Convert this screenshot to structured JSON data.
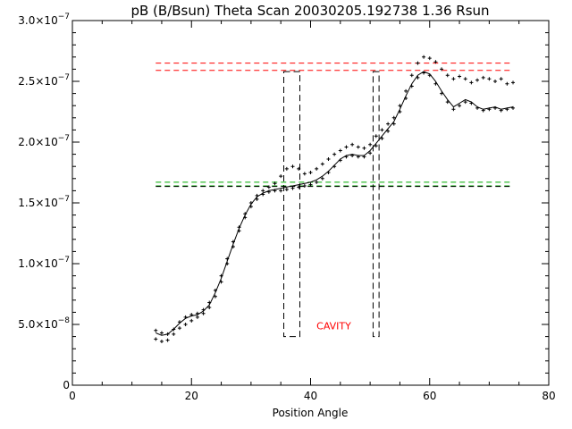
{
  "chart_data": {
    "type": "scatter",
    "title": "pB (B/Bsun) Theta Scan 20030205.192738 1.36 Rsun",
    "xlabel": "Position Angle",
    "ylabel": "",
    "xlim": [
      0,
      80
    ],
    "ylim": [
      0,
      3e-07
    ],
    "x_ticks": [
      0,
      20,
      40,
      60,
      80
    ],
    "x_tick_labels": [
      "0",
      "20",
      "40",
      "60",
      "80"
    ],
    "y_ticks": [
      0,
      5e-08,
      1e-07,
      1.5e-07,
      2e-07,
      2.5e-07,
      3e-07
    ],
    "y_tick_labels": [
      {
        "base": "0",
        "exp": ""
      },
      {
        "base": "5.0×10",
        "exp": "−8"
      },
      {
        "base": "1.0×10",
        "exp": "−7"
      },
      {
        "base": "1.5×10",
        "exp": "−7"
      },
      {
        "base": "2.0×10",
        "exp": "−7"
      },
      {
        "base": "2.5×10",
        "exp": "−7"
      },
      {
        "base": "3.0×10",
        "exp": "−7"
      }
    ],
    "annotation": {
      "text": "CAVITY",
      "x": 41,
      "y": 4.6e-08,
      "color": "#ff0000"
    },
    "series": [
      {
        "style": "plus",
        "color": "#000000",
        "x": [
          14,
          15,
          16,
          17,
          18,
          19,
          20,
          21,
          22,
          23,
          24,
          25,
          26,
          27,
          28,
          29,
          30,
          31,
          32,
          33,
          34,
          35,
          36,
          37,
          38,
          39,
          40,
          41,
          42,
          43,
          44,
          45,
          46,
          47,
          48,
          49,
          50,
          51,
          52,
          53,
          54,
          55,
          56,
          57,
          58,
          59,
          60,
          61,
          62,
          63,
          64,
          65,
          66,
          67,
          68,
          69,
          70,
          71,
          72,
          73,
          74
        ],
        "y": [
          4.5e-08,
          4.3e-08,
          4.2e-08,
          4.6e-08,
          5.2e-08,
          5.6e-08,
          5.8e-08,
          5.9e-08,
          6.2e-08,
          6.8e-08,
          7.8e-08,
          9e-08,
          1.04e-07,
          1.18e-07,
          1.3e-07,
          1.41e-07,
          1.5e-07,
          1.56e-07,
          1.6e-07,
          1.63e-07,
          1.66e-07,
          1.72e-07,
          1.78e-07,
          1.8e-07,
          1.78e-07,
          1.74e-07,
          1.75e-07,
          1.78e-07,
          1.82e-07,
          1.86e-07,
          1.9e-07,
          1.93e-07,
          1.96e-07,
          1.98e-07,
          1.96e-07,
          1.95e-07,
          1.98e-07,
          2.05e-07,
          2.1e-07,
          2.15e-07,
          2.2e-07,
          2.3e-07,
          2.42e-07,
          2.55e-07,
          2.65e-07,
          2.7e-07,
          2.69e-07,
          2.66e-07,
          2.6e-07,
          2.55e-07,
          2.52e-07,
          2.54e-07,
          2.52e-07,
          2.49e-07,
          2.51e-07,
          2.53e-07,
          2.52e-07,
          2.5e-07,
          2.52e-07,
          2.48e-07,
          2.49e-07
        ]
      },
      {
        "style": "plus",
        "color": "#000000",
        "x": [
          14,
          15,
          16,
          17,
          18,
          19,
          20,
          21,
          22,
          23,
          24,
          25,
          26,
          27,
          28,
          29,
          30,
          31,
          32,
          33,
          34,
          35,
          36,
          37,
          38,
          39,
          40,
          41,
          42,
          43,
          44,
          45,
          46,
          47,
          48,
          49,
          50,
          51,
          52,
          53,
          54,
          55,
          56,
          57,
          58,
          59,
          60,
          61,
          62,
          63,
          64,
          65,
          66,
          67,
          68,
          69,
          70,
          71,
          72,
          73,
          74
        ],
        "y": [
          3.8e-08,
          3.6e-08,
          3.7e-08,
          4.2e-08,
          4.7e-08,
          5e-08,
          5.3e-08,
          5.6e-08,
          5.9e-08,
          6.4e-08,
          7.3e-08,
          8.5e-08,
          1e-07,
          1.14e-07,
          1.27e-07,
          1.38e-07,
          1.47e-07,
          1.53e-07,
          1.57e-07,
          1.59e-07,
          1.6e-07,
          1.6e-07,
          1.61e-07,
          1.62e-07,
          1.63e-07,
          1.64e-07,
          1.65e-07,
          1.67e-07,
          1.7e-07,
          1.75e-07,
          1.8e-07,
          1.85e-07,
          1.88e-07,
          1.89e-07,
          1.88e-07,
          1.88e-07,
          1.91e-07,
          1.97e-07,
          2.03e-07,
          2.09e-07,
          2.15e-07,
          2.25e-07,
          2.36e-07,
          2.46e-07,
          2.53e-07,
          2.57e-07,
          2.55e-07,
          2.48e-07,
          2.4e-07,
          2.33e-07,
          2.27e-07,
          2.3e-07,
          2.33e-07,
          2.32e-07,
          2.28e-07,
          2.26e-07,
          2.27e-07,
          2.28e-07,
          2.26e-07,
          2.27e-07,
          2.28e-07
        ]
      },
      {
        "style": "line",
        "color": "#000000",
        "x": [
          14,
          15,
          16,
          17,
          18,
          19,
          20,
          21,
          22,
          23,
          24,
          25,
          26,
          27,
          28,
          29,
          30,
          31,
          32,
          33,
          34,
          35,
          36,
          37,
          38,
          39,
          40,
          41,
          42,
          43,
          44,
          45,
          46,
          47,
          48,
          49,
          50,
          51,
          52,
          53,
          54,
          55,
          56,
          57,
          58,
          59,
          60,
          61,
          62,
          63,
          64,
          65,
          66,
          67,
          68,
          69,
          70,
          71,
          72,
          73,
          74
        ],
        "y": [
          4.3e-08,
          4.1e-08,
          4.2e-08,
          4.6e-08,
          5.1e-08,
          5.5e-08,
          5.7e-08,
          5.8e-08,
          6.1e-08,
          6.6e-08,
          7.6e-08,
          8.8e-08,
          1.02e-07,
          1.16e-07,
          1.29e-07,
          1.4e-07,
          1.49e-07,
          1.55e-07,
          1.58e-07,
          1.6e-07,
          1.61e-07,
          1.62e-07,
          1.63e-07,
          1.64e-07,
          1.65e-07,
          1.66e-07,
          1.67e-07,
          1.69e-07,
          1.72e-07,
          1.76e-07,
          1.81e-07,
          1.86e-07,
          1.89e-07,
          1.9e-07,
          1.89e-07,
          1.89e-07,
          1.93e-07,
          1.99e-07,
          2.05e-07,
          2.11e-07,
          2.17e-07,
          2.27e-07,
          2.38e-07,
          2.48e-07,
          2.55e-07,
          2.58e-07,
          2.56e-07,
          2.5e-07,
          2.42e-07,
          2.35e-07,
          2.29e-07,
          2.32e-07,
          2.35e-07,
          2.33e-07,
          2.29e-07,
          2.27e-07,
          2.28e-07,
          2.29e-07,
          2.27e-07,
          2.28e-07,
          2.29e-07
        ]
      }
    ],
    "reference_lines": [
      {
        "y": 2.65e-07,
        "x": [
          14,
          74
        ],
        "color": "#ff0000",
        "dash": true
      },
      {
        "y": 2.59e-07,
        "x": [
          14,
          74
        ],
        "color": "#ff0000",
        "dash": true
      },
      {
        "y": 1.67e-07,
        "x": [
          14,
          74
        ],
        "color": "#00aa00",
        "dash": true
      },
      {
        "y": 1.64e-07,
        "x": [
          14,
          74
        ],
        "color": "#00aa00",
        "dash": true
      },
      {
        "y": 1.635e-07,
        "x": [
          14,
          74
        ],
        "color": "#000000",
        "dash": true
      }
    ],
    "cavity_boxes": [
      {
        "x0": 35.5,
        "x1": 38.2,
        "y0": 4e-08,
        "y1": 2.58e-07
      },
      {
        "x0": 50.5,
        "x1": 51.5,
        "y0": 4e-08,
        "y1": 2.58e-07
      }
    ]
  }
}
